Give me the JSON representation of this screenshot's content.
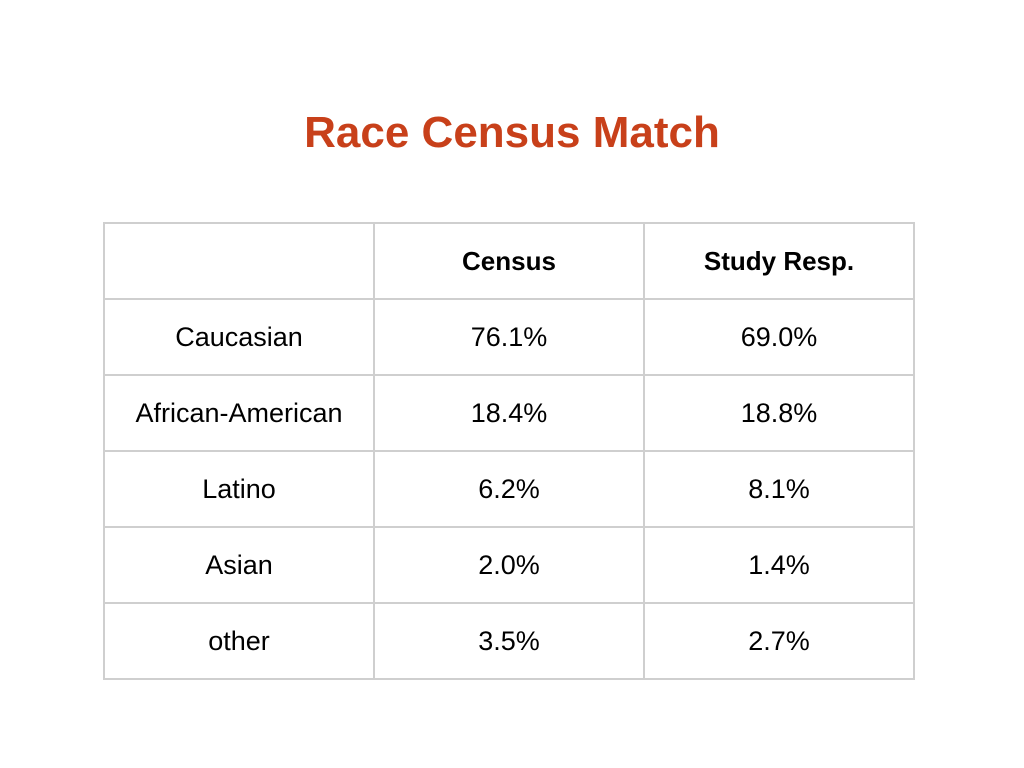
{
  "title": "Race Census Match",
  "table": {
    "headers": [
      "",
      "Census",
      "Study Resp."
    ],
    "rows": [
      {
        "label": "Caucasian",
        "census": "76.1%",
        "study": "69.0%"
      },
      {
        "label": "African-American",
        "census": "18.4%",
        "study": "18.8%"
      },
      {
        "label": "Latino",
        "census": "6.2%",
        "study": "8.1%"
      },
      {
        "label": "Asian",
        "census": "2.0%",
        "study": "1.4%"
      },
      {
        "label": "other",
        "census": "3.5%",
        "study": "2.7%"
      }
    ]
  },
  "colors": {
    "title": "#c8401a",
    "grid": "#cfcfcf"
  }
}
